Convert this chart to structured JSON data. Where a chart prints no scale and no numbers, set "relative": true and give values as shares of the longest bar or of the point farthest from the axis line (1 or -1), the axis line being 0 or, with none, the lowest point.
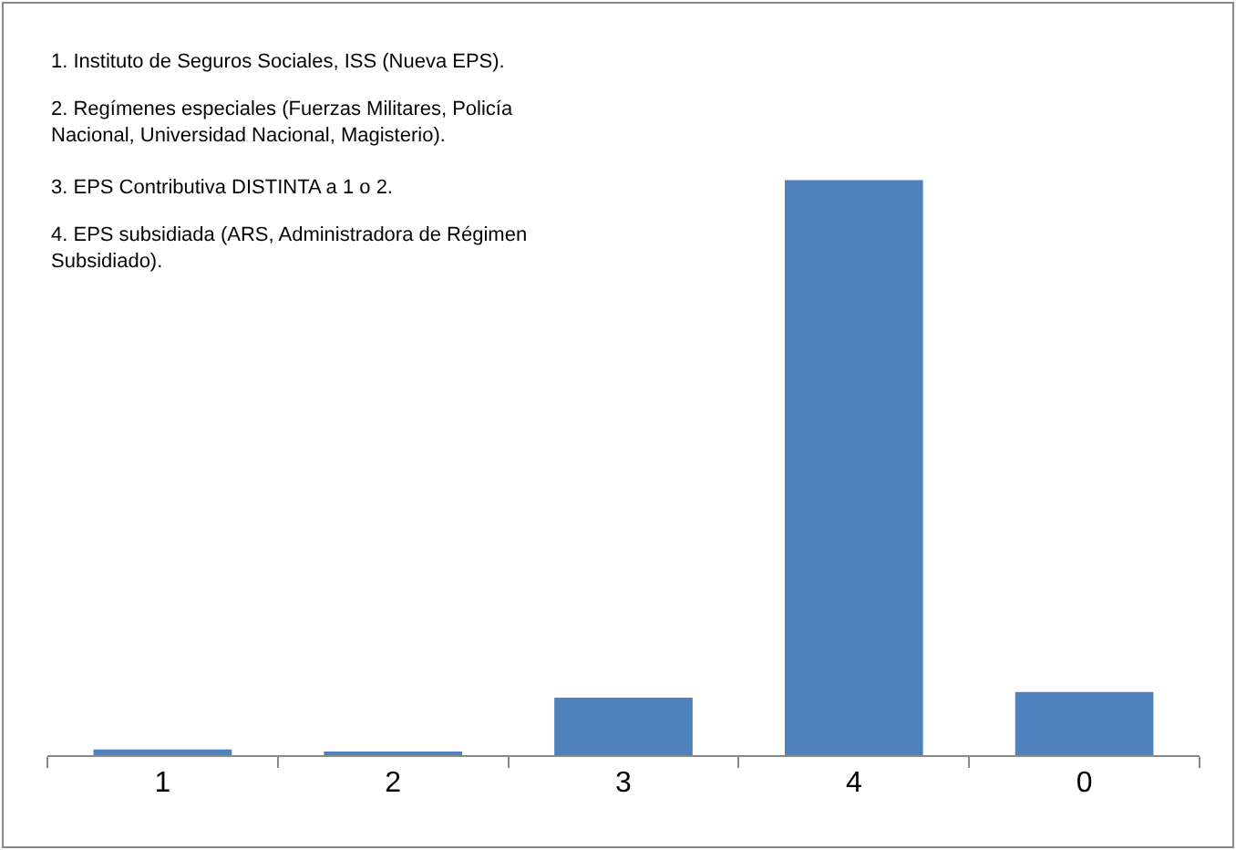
{
  "chart_data": {
    "type": "bar",
    "relative": true,
    "categories": [
      "1",
      "2",
      "3",
      "4",
      "0"
    ],
    "values": [
      0.01,
      0.006,
      0.1,
      1,
      0.11
    ],
    "color": "#4f81bd",
    "grid": false,
    "annotations": [
      "1. Instituto de Seguros Sociales, ISS (Nueva EPS).",
      "2. Regímenes especiales (Fuerzas Militares, Policía Nacional, Universidad Nacional, Magisterio).",
      "3. EPS Contributiva DISTINTA a 1 o 2.",
      "4. EPS subsidiada (ARS, Administradora de Régimen Subsidiado)."
    ]
  }
}
